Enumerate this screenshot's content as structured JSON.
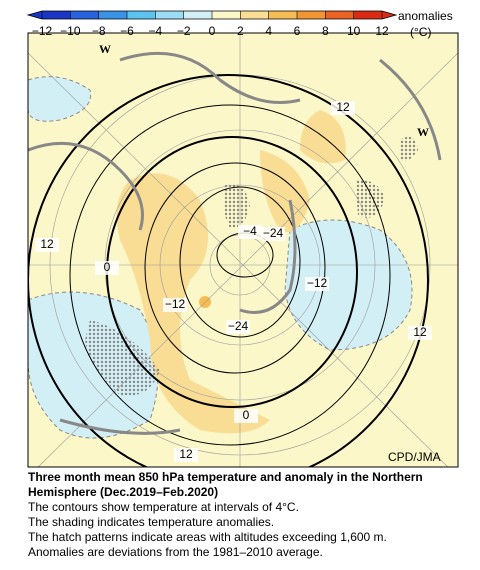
{
  "colorbar": {
    "ticks": [
      "−12",
      "−10",
      "−8",
      "−6",
      "−4",
      "−2",
      "0",
      "2",
      "4",
      "6",
      "8",
      "10",
      "12"
    ],
    "colors": [
      "#1b35c4",
      "#2763de",
      "#3a93e6",
      "#5cc4f0",
      "#9edcf6",
      "#d3eff6",
      "#fbf7c8",
      "#f9dd94",
      "#f7bd55",
      "#f29634",
      "#ea6224",
      "#d92b14"
    ],
    "label": "anomalies",
    "unit": "(°C)"
  },
  "map": {
    "contour_labels": [
      "12",
      "0",
      "−4",
      "−24",
      "12",
      "−12",
      "−12",
      "−24",
      "0",
      "12",
      "12"
    ],
    "wave_labels": [
      "W",
      "W"
    ],
    "credit": "CPD/JMA"
  },
  "caption": {
    "title": "Three month mean 850 hPa temperature and anomaly in the Northern Hemisphere (Dec.2019–Feb.2020)",
    "lines": [
      "The contours show temperature at intervals of 4°C.",
      "The shading indicates temperature anomalies.",
      "The hatch patterns indicate areas with altitudes exceeding 1,600 m.",
      "Anomalies are deviations from the 1981–2010 average."
    ]
  }
}
